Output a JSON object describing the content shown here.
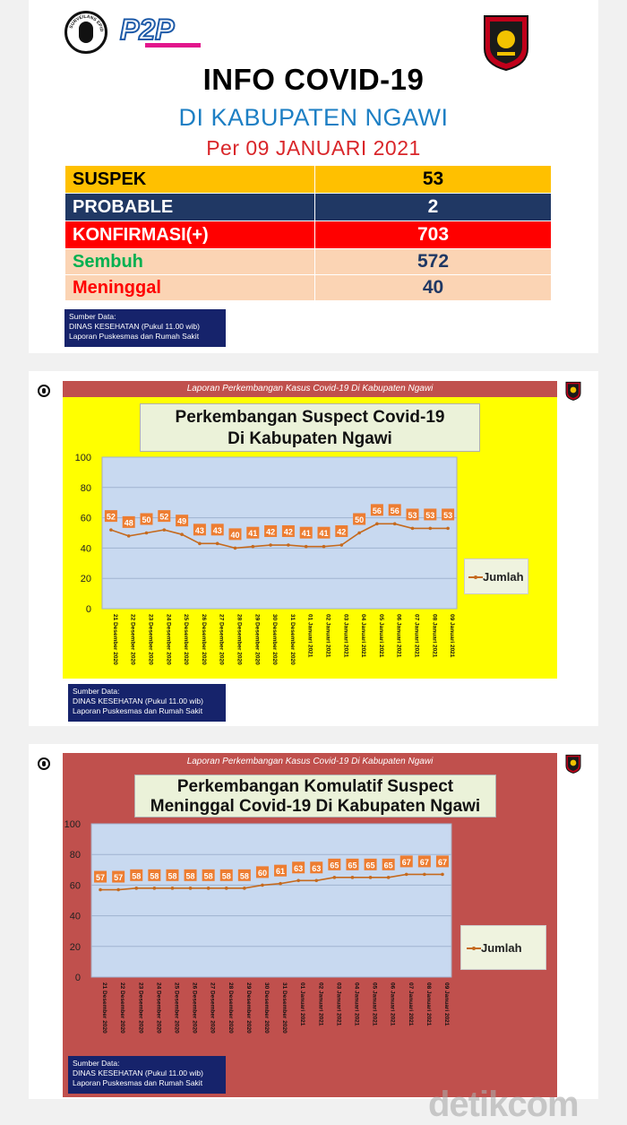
{
  "header": {
    "logo_left_text": "SURVEILANS EPIDEMIOLOGI",
    "logo_p2p_text": "P2P",
    "title": "INFO COVID-19",
    "subtitle": "DI KABUPATEN NGAWI",
    "date_line": "Per 09 JANUARI 2021"
  },
  "stats": [
    {
      "label": "SUSPEK",
      "value": "53",
      "label_bg": "#ffc000",
      "value_bg": "#ffc000",
      "label_color": "#000000",
      "value_color": "#000000"
    },
    {
      "label": "PROBABLE",
      "value": "2",
      "label_bg": "#203864",
      "value_bg": "#203864",
      "label_color": "#ffffff",
      "value_color": "#ffffff"
    },
    {
      "label": "KONFIRMASI(+)",
      "value": "703",
      "label_bg": "#ff0000",
      "value_bg": "#ff0000",
      "label_color": "#ffffff",
      "value_color": "#ffffff"
    },
    {
      "label": "Sembuh",
      "value": "572",
      "label_bg": "#fbd4b4",
      "value_bg": "#fbd4b4",
      "label_color": "#00b050",
      "value_color": "#1f3864"
    },
    {
      "label": "Meninggal",
      "value": "40",
      "label_bg": "#fbd4b4",
      "value_bg": "#fbd4b4",
      "label_color": "#ff0000",
      "value_color": "#1f3864"
    }
  ],
  "source": {
    "line1": "Sumber Data:",
    "line2": "DINAS KESEHATAN (Pukul 11.00 wib)",
    "line3": "Laporan Puskesmas dan Rumah Sakit"
  },
  "source2": {
    "line1": "Sumber Data:",
    "line2": "DINAS KESEHATAN (Pukul 11.00 wib)",
    "line3": "Laporan Puskesmas dan Rumah Sakit"
  },
  "source3": {
    "line1": "Sumber Data:",
    "line2": "DINAS KESEHATAN (Pukul 11.00 wib)",
    "line3": "Laporan Puskesmas dan Rumah Sakit"
  },
  "banner_text": "Laporan Perkembangan Kasus Covid-19 Di Kabupaten Ngawi",
  "watermark": "detikcom",
  "colors": {
    "line": "#c56a1e",
    "label_box": "#ed7d31",
    "plot_bg": "#c8d9f0",
    "panel1_bg": "#ffff00",
    "panel2_bg": "#c0504d"
  },
  "chart_data": [
    {
      "type": "line",
      "title": "Perkembangan Suspect Covid-19\nDi Kabupaten Ngawi",
      "x": [
        "21 Desember 2020",
        "22 Desember 2020",
        "23 Desember 2020",
        "24 Desember 2020",
        "25 Desember 2020",
        "26 Desember 2020",
        "27 Desember 2020",
        "28 Desember 2020",
        "29 Desember 2020",
        "30 Desember 2020",
        "31 Desember 2020",
        "01 Januari 2021",
        "02 Januari 2021",
        "03 Januari 2021",
        "04 Januari 2021",
        "05 Januari 2021",
        "06 Januari 2021",
        "07 Januari 2021",
        "08 Januari 2021",
        "09 Januari 2021"
      ],
      "series": [
        {
          "name": "Jumlah",
          "values": [
            52,
            48,
            50,
            52,
            49,
            43,
            43,
            40,
            41,
            42,
            42,
            41,
            41,
            42,
            50,
            56,
            56,
            53,
            53,
            53
          ]
        }
      ],
      "ylim": [
        0,
        100
      ],
      "yticks": [
        0,
        20,
        40,
        60,
        80,
        100
      ],
      "legend": "right",
      "grid": true
    },
    {
      "type": "line",
      "title": "Perkembangan Komulatif Suspect\nMeninggal Covid-19 Di Kabupaten Ngawi",
      "x": [
        "21 Desember 2020",
        "22 Desember 2020",
        "23 Desember 2020",
        "24 Desember 2020",
        "25 Desember 2020",
        "26 Desember 2020",
        "27 Desember 2020",
        "28 Desember 2020",
        "29 Desember 2020",
        "30 Desember 2020",
        "31 Desember 2020",
        "01 Januari 2021",
        "02 Januari 2021",
        "03 Januari 2021",
        "04 Januari 2021",
        "05 Januari 2021",
        "06 Januari 2021",
        "07 Januari 2021",
        "08 Januari 2021",
        "09 Januari 2021"
      ],
      "series": [
        {
          "name": "Jumlah",
          "values": [
            57,
            57,
            58,
            58,
            58,
            58,
            58,
            58,
            58,
            60,
            61,
            63,
            63,
            65,
            65,
            65,
            65,
            67,
            67,
            67
          ]
        }
      ],
      "ylim": [
        0,
        100
      ],
      "yticks": [
        0,
        20,
        40,
        60,
        80,
        100
      ],
      "legend": "right",
      "grid": true
    }
  ]
}
